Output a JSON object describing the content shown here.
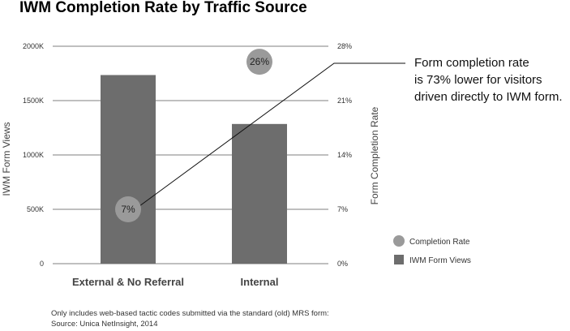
{
  "chart_data": {
    "type": "bar",
    "title": "IWM Completion Rate by Traffic Source",
    "categories": [
      "External & No Referral",
      "Internal"
    ],
    "series": [
      {
        "name": "IWM Form Views",
        "type": "bar",
        "axis": "left",
        "values": [
          1735000,
          1285000
        ],
        "color": "#6d6d6d"
      },
      {
        "name": "Completion Rate",
        "type": "scatter",
        "axis": "right",
        "values": [
          7,
          26
        ],
        "data_labels": [
          "7%",
          "26%"
        ],
        "color": "#9a9a9a"
      }
    ],
    "ylabel_left": "IWM Form Views",
    "ylabel_right": "Form Completion Rate",
    "ylim_left": [
      0,
      2000000
    ],
    "yticks_left": [
      "0",
      "500K",
      "1000K",
      "1500K",
      "2000K"
    ],
    "ylim_right": [
      0,
      28
    ],
    "yticks_right": [
      "0%",
      "7%",
      "14%",
      "21%",
      "28%"
    ],
    "grid": true,
    "legend_position": "right",
    "annotation": {
      "lines": [
        "Form completion rate",
        "is 73% lower for visitors",
        "driven directly to IWM form."
      ],
      "points_to": "External & No Referral"
    },
    "footnote": [
      "Only includes web-based tactic codes submitted via the standard (old) MRS form:",
      "Source: Unica NetInsight, 2014"
    ]
  }
}
